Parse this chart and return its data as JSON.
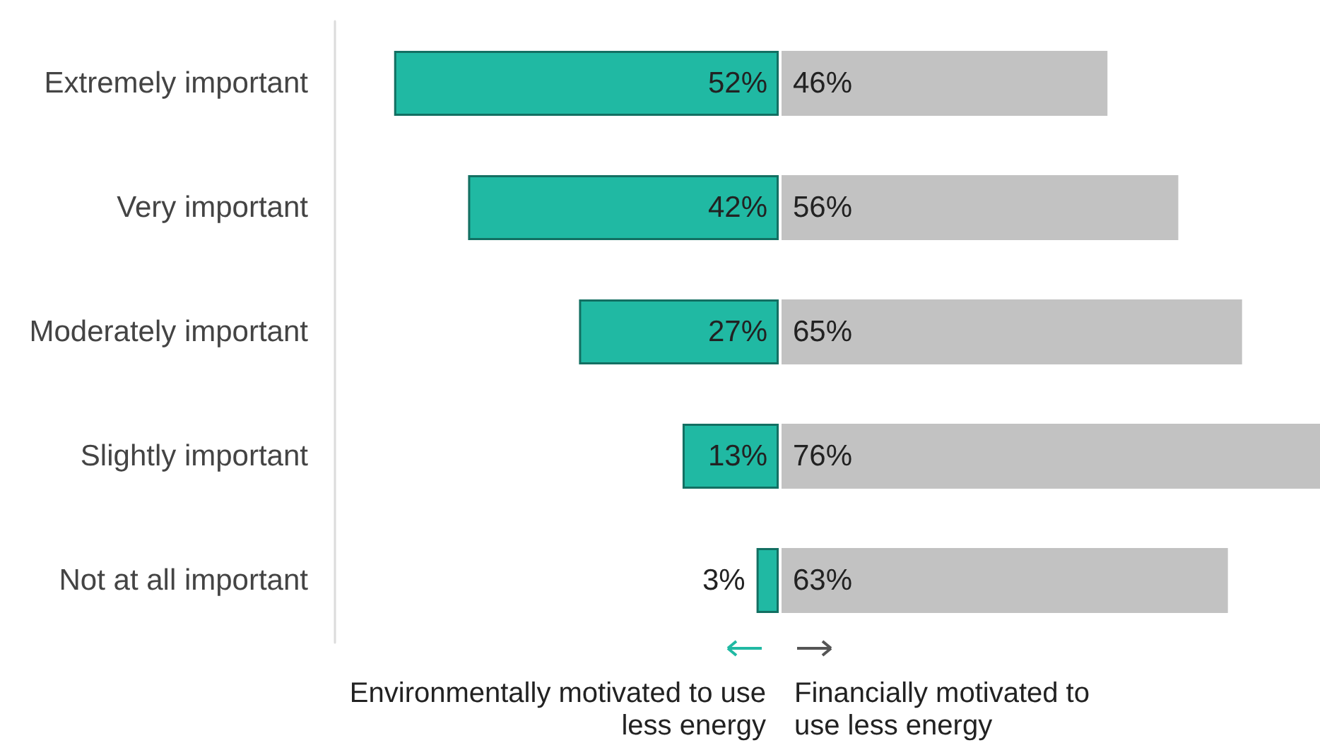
{
  "chart_data": [
    {
      "type": "bar",
      "orientation": "horizontal",
      "tick_labels": "y",
      "categories": [
        "Extremely important",
        "Very important",
        "Moderately important",
        "Slightly important",
        "Not at all important"
      ],
      "xlim": [
        60,
        0
      ],
      "series": [
        {
          "color": "#20b9a3",
          "values": [
            52,
            42,
            27,
            13,
            3
          ],
          "value_labels": [
            "52%",
            "42%",
            "27%",
            "13%",
            "3%"
          ]
        }
      ],
      "annotations": [
        "Environmentally motivated to use less energy"
      ]
    },
    {
      "type": "bar",
      "orientation": "horizontal",
      "tick_labels": false,
      "categories": [
        null,
        null,
        null,
        null,
        null
      ],
      "xlim": [
        0,
        76
      ],
      "series": [
        {
          "color": "#c2c2c2",
          "values": [
            46,
            56,
            65,
            76,
            63
          ],
          "value_labels": [
            "46%",
            "56%",
            "65%",
            "76%",
            "63%"
          ]
        }
      ],
      "annotations": [
        "Financially motivated to use less energy"
      ]
    }
  ]
}
